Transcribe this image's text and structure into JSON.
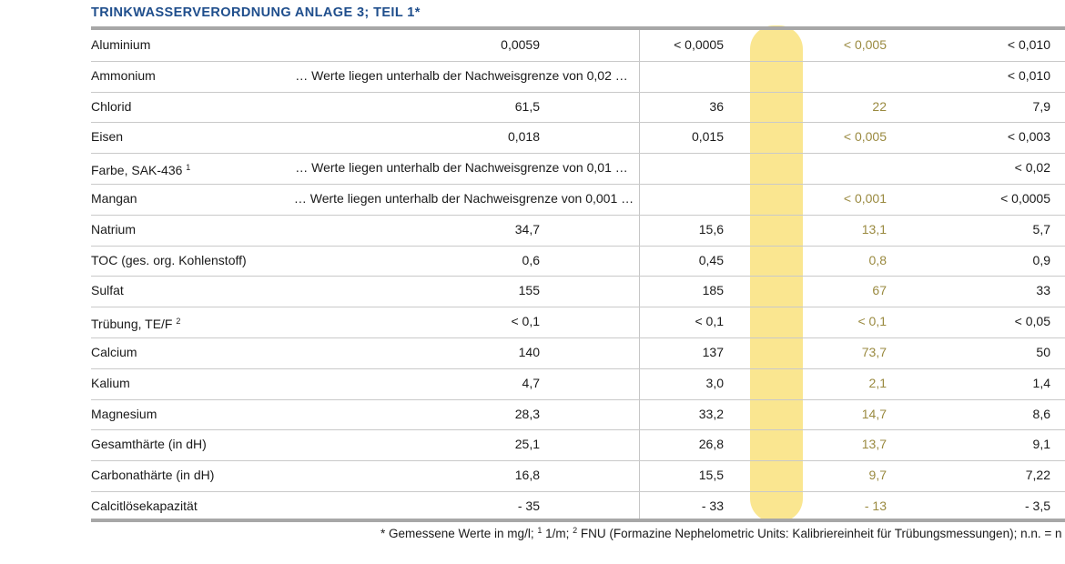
{
  "title": "TRINKWASSERVERORDNUNG ANLAGE 3; TEIL 1*",
  "rows": [
    {
      "name": "Aluminium",
      "sup": "",
      "v1": "0,0059",
      "v2": "< 0,0005",
      "v3": "< 0,005",
      "v4": "< 0,010"
    },
    {
      "name": "Ammonium",
      "sup": "",
      "merged": "… Werte liegen unterhalb der Nachweisgrenze von 0,02 …",
      "v4": "< 0,010"
    },
    {
      "name": "Chlorid",
      "sup": "",
      "v1": "61,5",
      "v2": "36",
      "v3": "22",
      "v4": "7,9"
    },
    {
      "name": "Eisen",
      "sup": "",
      "v1": "0,018",
      "v2": "0,015",
      "v3": "< 0,005",
      "v4": "< 0,003"
    },
    {
      "name": "Farbe, SAK-436",
      "sup": "1",
      "merged": "… Werte liegen unterhalb der Nachweisgrenze von 0,01 …",
      "v4": "< 0,02"
    },
    {
      "name": "Mangan",
      "sup": "",
      "merged_left": "… Werte liegen unterhalb der Nachweisgrenze von 0,001 …",
      "v3": "< 0,001",
      "v4": "< 0,0005"
    },
    {
      "name": "Natrium",
      "sup": "",
      "v1": "34,7",
      "v2": "15,6",
      "v3": "13,1",
      "v4": "5,7"
    },
    {
      "name": "TOC (ges. org. Kohlenstoff)",
      "sup": "",
      "v1": "0,6",
      "v2": "0,45",
      "v3": "0,8",
      "v4": "0,9"
    },
    {
      "name": "Sulfat",
      "sup": "",
      "v1": "155",
      "v2": "185",
      "v3": "67",
      "v4": "33"
    },
    {
      "name": "Trübung, TE/F",
      "sup": "2",
      "v1": "< 0,1",
      "v2": "< 0,1",
      "v3": "< 0,1",
      "v4": "< 0,05"
    },
    {
      "name": "Calcium",
      "sup": "",
      "v1": "140",
      "v2": "137",
      "v3": "73,7",
      "v4": "50"
    },
    {
      "name": "Kalium",
      "sup": "",
      "v1": "4,7",
      "v2": "3,0",
      "v3": "2,1",
      "v4": "1,4"
    },
    {
      "name": "Magnesium",
      "sup": "",
      "v1": "28,3",
      "v2": "33,2",
      "v3": "14,7",
      "v4": "8,6"
    },
    {
      "name": "Gesamthärte (in dH)",
      "sup": "",
      "v1": "25,1",
      "v2": "26,8",
      "v3": "13,7",
      "v4": "9,1"
    },
    {
      "name": "Carbonathärte (in dH)",
      "sup": "",
      "v1": "16,8",
      "v2": "15,5",
      "v3": "9,7",
      "v4": "7,22"
    },
    {
      "name": "Calcitlösekapazität",
      "sup": "",
      "v1": "- 35",
      "v2": "- 33",
      "v3": "- 13",
      "v4": "- 3,5"
    }
  ],
  "footnote": {
    "prefix": "* Gemessene Werte in mg/l; ",
    "sup1": "1",
    "part2": " 1/m; ",
    "sup2": "2",
    "part3": " FNU (Formazine Nephelometric Units: Kalibriereinheit für Trübungsmessungen); n.n. = n"
  }
}
